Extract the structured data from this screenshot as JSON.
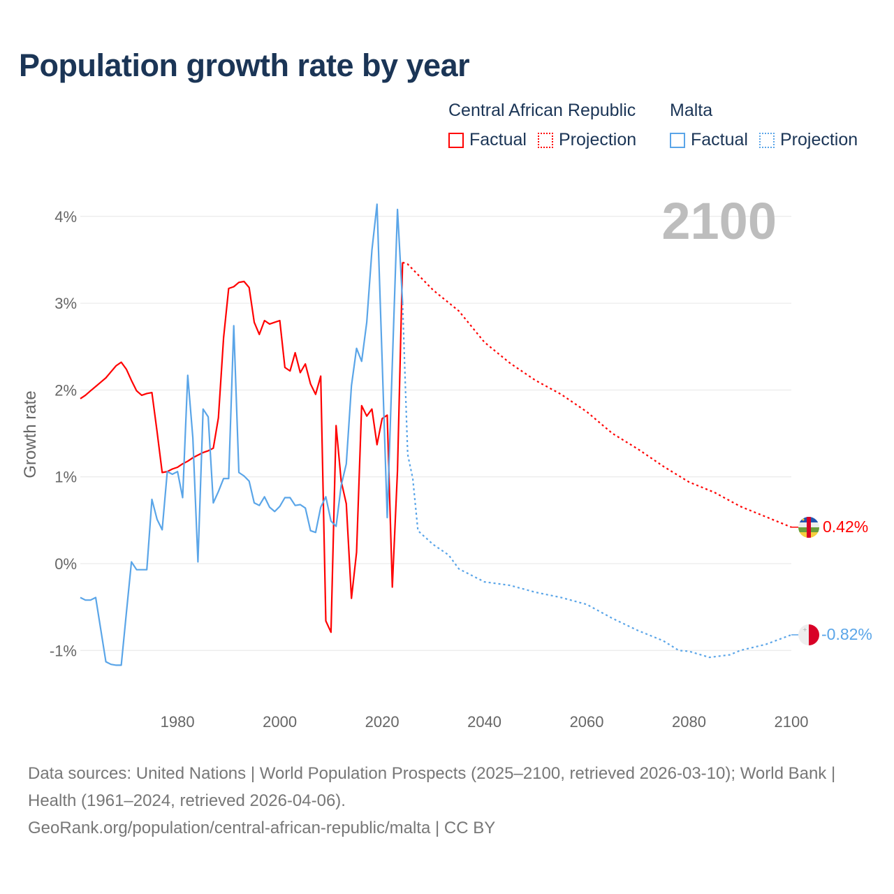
{
  "title": "Population growth rate by year",
  "legend": {
    "groups": [
      {
        "name": "Central African Republic",
        "factual": "Factual",
        "projection": "Projection",
        "color": "#ff0000"
      },
      {
        "name": "Malta",
        "factual": "Factual",
        "projection": "Projection",
        "color": "#5aa5e8"
      }
    ]
  },
  "year_display": "2100",
  "footer": {
    "line1": "Data sources: United Nations | World Population Prospects (2025–2100, retrieved 2026-03-10); World Bank | Health (1961–2024, retrieved 2026-04-06).",
    "line2": "GeoRank.org/population/central-african-republic/malta | CC BY"
  },
  "chart_data": {
    "type": "line",
    "title": "Population growth rate by year",
    "xlabel": "",
    "ylabel": "Growth rate",
    "xlim": [
      1961,
      2100
    ],
    "ylim": [
      -1.5,
      4.2
    ],
    "x_ticks": [
      1980,
      2000,
      2020,
      2040,
      2060,
      2080,
      2100
    ],
    "y_ticks": [
      -1,
      0,
      1,
      2,
      3,
      4
    ],
    "y_tick_labels": [
      "-1%",
      "0%",
      "1%",
      "2%",
      "3%",
      "4%"
    ],
    "grid": true,
    "series": [
      {
        "name": "Central African Republic – Factual",
        "color": "#ff0000",
        "style": "solid",
        "x": [
          1961,
          1962,
          1963,
          1964,
          1965,
          1966,
          1967,
          1968,
          1969,
          1970,
          1971,
          1972,
          1973,
          1974,
          1975,
          1976,
          1977,
          1978,
          1979,
          1980,
          1981,
          1982,
          1983,
          1984,
          1985,
          1986,
          1987,
          1988,
          1989,
          1990,
          1991,
          1992,
          1993,
          1994,
          1995,
          1996,
          1997,
          1998,
          1999,
          2000,
          2001,
          2002,
          2003,
          2004,
          2005,
          2006,
          2007,
          2008,
          2009,
          2010,
          2011,
          2012,
          2013,
          2014,
          2015,
          2016,
          2017,
          2018,
          2019,
          2020,
          2021,
          2022,
          2023,
          2024
        ],
        "y": [
          1.9,
          1.94,
          1.99,
          2.04,
          2.09,
          2.14,
          2.21,
          2.28,
          2.32,
          2.24,
          2.11,
          1.99,
          1.94,
          1.96,
          1.97,
          1.52,
          1.05,
          1.06,
          1.09,
          1.11,
          1.15,
          1.18,
          1.22,
          1.25,
          1.28,
          1.3,
          1.33,
          1.68,
          2.6,
          3.17,
          3.19,
          3.24,
          3.25,
          3.18,
          2.78,
          2.64,
          2.8,
          2.76,
          2.78,
          2.8,
          2.26,
          2.22,
          2.43,
          2.2,
          2.3,
          2.07,
          1.95,
          2.16,
          -0.66,
          -0.79,
          1.59,
          0.95,
          0.69,
          -0.4,
          0.13,
          1.82,
          1.7,
          1.78,
          1.37,
          1.67,
          1.71,
          -0.27,
          1.07,
          3.47
        ]
      },
      {
        "name": "Central African Republic – Projection",
        "color": "#ff0000",
        "style": "dotted",
        "x": [
          2024,
          2025,
          2030,
          2035,
          2040,
          2045,
          2050,
          2055,
          2060,
          2065,
          2070,
          2075,
          2080,
          2085,
          2090,
          2095,
          2100
        ],
        "y": [
          3.47,
          3.45,
          3.15,
          2.91,
          2.55,
          2.31,
          2.11,
          1.95,
          1.75,
          1.5,
          1.32,
          1.12,
          0.94,
          0.82,
          0.66,
          0.54,
          0.42
        ],
        "end_label": "0.42%"
      },
      {
        "name": "Malta – Factual",
        "color": "#5aa5e8",
        "style": "solid",
        "x": [
          1961,
          1962,
          1963,
          1964,
          1965,
          1966,
          1967,
          1968,
          1969,
          1970,
          1971,
          1972,
          1973,
          1974,
          1975,
          1976,
          1977,
          1978,
          1979,
          1980,
          1981,
          1982,
          1983,
          1984,
          1985,
          1986,
          1987,
          1988,
          1989,
          1990,
          1991,
          1992,
          1993,
          1994,
          1995,
          1996,
          1997,
          1998,
          1999,
          2000,
          2001,
          2002,
          2003,
          2004,
          2005,
          2006,
          2007,
          2008,
          2009,
          2010,
          2011,
          2012,
          2013,
          2014,
          2015,
          2016,
          2017,
          2018,
          2019,
          2020,
          2021,
          2022,
          2023,
          2024
        ],
        "y": [
          -0.39,
          -0.42,
          -0.42,
          -0.39,
          -0.76,
          -1.13,
          -1.16,
          -1.17,
          -1.17,
          -0.57,
          0.02,
          -0.07,
          -0.07,
          -0.07,
          0.74,
          0.51,
          0.39,
          1.06,
          1.03,
          1.06,
          0.76,
          2.17,
          1.45,
          0.02,
          1.78,
          1.69,
          0.7,
          0.83,
          0.98,
          0.98,
          2.74,
          1.05,
          1.01,
          0.95,
          0.7,
          0.67,
          0.77,
          0.65,
          0.6,
          0.66,
          0.76,
          0.76,
          0.67,
          0.68,
          0.64,
          0.38,
          0.36,
          0.65,
          0.77,
          0.49,
          0.43,
          0.9,
          1.15,
          2.05,
          2.48,
          2.33,
          2.78,
          3.61,
          4.14,
          2.35,
          0.53,
          2.3,
          4.08,
          3.0
        ]
      },
      {
        "name": "Malta – Projection",
        "color": "#5aa5e8",
        "style": "dotted",
        "x": [
          2024,
          2025,
          2026,
          2027,
          2030,
          2033,
          2035,
          2040,
          2045,
          2050,
          2055,
          2060,
          2065,
          2070,
          2075,
          2078,
          2080,
          2084,
          2088,
          2090,
          2095,
          2100
        ],
        "y": [
          3.0,
          1.26,
          0.98,
          0.38,
          0.22,
          0.1,
          -0.06,
          -0.21,
          -0.25,
          -0.33,
          -0.39,
          -0.47,
          -0.63,
          -0.77,
          -0.89,
          -1.0,
          -1.01,
          -1.08,
          -1.05,
          -1.0,
          -0.93,
          -0.82
        ],
        "end_label": "-0.82%"
      }
    ]
  }
}
